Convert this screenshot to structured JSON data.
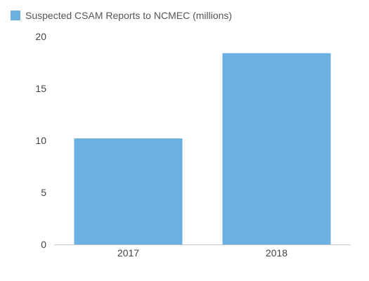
{
  "chart_data": {
    "type": "bar",
    "categories": [
      "2017",
      "2018"
    ],
    "series": [
      {
        "name": "Suspected CSAM Reports to NCMEC (millions)",
        "values": [
          10.2,
          18.4
        ],
        "color": "#6ab1e1"
      }
    ],
    "yticks": [
      "0",
      "5",
      "10",
      "15",
      "20"
    ],
    "ylim": [
      0,
      20
    ],
    "grid": false,
    "legend": "top-left",
    "title": "",
    "xlabel": "",
    "ylabel": ""
  }
}
